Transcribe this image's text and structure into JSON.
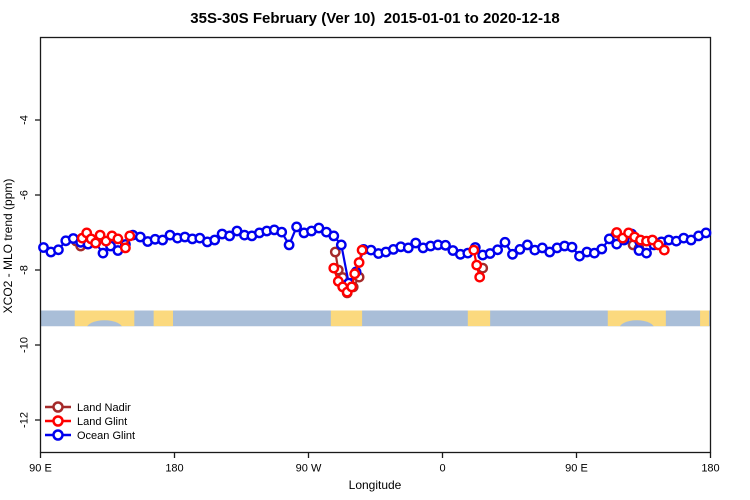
{
  "title": "35S-30S February (Ver 10)  2015-01-01 to 2020-12-18",
  "chart_data": {
    "type": "line",
    "title": "35S-30S February (Ver 10)  2015-01-01 to 2020-12-18",
    "xlabel": "Longitude",
    "ylabel": "XCO2 - MLO trend (ppm)",
    "x_axis_note": "longitude axis wraps: 90E eastward through 180, 90W, 0, 90E to 180 (450 deg total, plotted as 90..540)",
    "xlim": [
      90,
      540
    ],
    "ylim": [
      -12.2,
      -1.8
    ],
    "x_ticks": [
      {
        "value": 90,
        "label": "90 E"
      },
      {
        "value": 180,
        "label": "180"
      },
      {
        "value": 270,
        "label": "90 W"
      },
      {
        "value": 360,
        "label": "0"
      },
      {
        "value": 450,
        "label": "90 E"
      },
      {
        "value": 540,
        "label": "180"
      }
    ],
    "y_ticks": [
      {
        "value": -4,
        "label": "-4"
      },
      {
        "value": -6,
        "label": "-6"
      },
      {
        "value": -8,
        "label": "-8"
      },
      {
        "value": -10,
        "label": "-10"
      },
      {
        "value": -12,
        "label": "-12"
      }
    ],
    "land_ocean_band": {
      "comment": "horizontal strip showing land (tan) vs ocean (gray-blue) along the 35S-30S belt",
      "v_top": -9.08,
      "v_bottom": -9.5,
      "ocean_color": "#a9bed8",
      "land_color": "#fbd97e",
      "land_patches": [
        {
          "from": 113,
          "to": 153,
          "notch": true
        },
        {
          "from": 166,
          "to": 179,
          "notch": false
        },
        {
          "from": 285,
          "to": 306,
          "notch": false
        },
        {
          "from": 377,
          "to": 392,
          "notch": false
        },
        {
          "from": 471,
          "to": 510,
          "notch": true
        },
        {
          "from": 533,
          "to": 539,
          "notch": false
        }
      ]
    },
    "series": [
      {
        "name": "Land Nadir",
        "color": "#a52a2a",
        "segments": [
          [
            [
              114,
              -7.23
            ],
            [
              117,
              -7.36
            ],
            [
              121,
              -7.3
            ]
          ],
          [
            [
              288,
              -7.52
            ],
            [
              290,
              -8.0
            ],
            [
              293,
              -8.2
            ],
            [
              296,
              -8.61
            ],
            [
              300,
              -8.45
            ],
            [
              304,
              -8.19
            ]
          ],
          [
            [
              387,
              -7.95
            ]
          ],
          [
            [
              476,
              -7.09
            ],
            [
              488,
              -7.33
            ],
            [
              492,
              -7.42
            ]
          ]
        ]
      },
      {
        "name": "Ocean Glint",
        "color": "#0000ee",
        "segments": [
          [
            [
              92,
              -7.4
            ],
            [
              97,
              -7.52
            ],
            [
              102,
              -7.46
            ],
            [
              107,
              -7.22
            ],
            [
              112,
              -7.16
            ],
            [
              117,
              -7.26
            ],
            [
              122,
              -7.31
            ],
            [
              127,
              -7.28
            ],
            [
              132,
              -7.55
            ],
            [
              137,
              -7.36
            ],
            [
              142,
              -7.48
            ],
            [
              147,
              -7.32
            ],
            [
              152,
              -7.07
            ],
            [
              157,
              -7.12
            ],
            [
              162,
              -7.24
            ],
            [
              167,
              -7.18
            ],
            [
              172,
              -7.2
            ],
            [
              177,
              -7.07
            ],
            [
              182,
              -7.15
            ],
            [
              187,
              -7.12
            ],
            [
              192,
              -7.17
            ],
            [
              197,
              -7.15
            ],
            [
              202,
              -7.25
            ],
            [
              207,
              -7.2
            ],
            [
              212,
              -7.04
            ],
            [
              217,
              -7.09
            ],
            [
              222,
              -6.96
            ],
            [
              227,
              -7.07
            ],
            [
              232,
              -7.09
            ],
            [
              237,
              -7.01
            ],
            [
              242,
              -6.96
            ],
            [
              247,
              -6.93
            ],
            [
              252,
              -6.99
            ],
            [
              257,
              -7.33
            ],
            [
              262,
              -6.85
            ],
            [
              267,
              -7.01
            ],
            [
              272,
              -6.96
            ],
            [
              277,
              -6.88
            ],
            [
              282,
              -6.99
            ],
            [
              287,
              -7.09
            ],
            [
              292,
              -7.33
            ],
            [
              297,
              -8.35
            ],
            [
              302,
              -8.05
            ],
            [
              307,
              -7.45
            ],
            [
              312,
              -7.47
            ],
            [
              317,
              -7.56
            ],
            [
              322,
              -7.52
            ],
            [
              327,
              -7.45
            ],
            [
              332,
              -7.38
            ],
            [
              337,
              -7.41
            ],
            [
              342,
              -7.28
            ],
            [
              347,
              -7.41
            ],
            [
              352,
              -7.36
            ],
            [
              357,
              -7.33
            ],
            [
              362,
              -7.34
            ],
            [
              367,
              -7.48
            ],
            [
              372,
              -7.58
            ],
            [
              377,
              -7.55
            ],
            [
              382,
              -7.4
            ],
            [
              387,
              -7.6
            ],
            [
              392,
              -7.56
            ],
            [
              397,
              -7.46
            ],
            [
              402,
              -7.26
            ],
            [
              407,
              -7.58
            ],
            [
              412,
              -7.45
            ],
            [
              417,
              -7.33
            ],
            [
              422,
              -7.47
            ],
            [
              427,
              -7.41
            ],
            [
              432,
              -7.52
            ],
            [
              437,
              -7.41
            ],
            [
              442,
              -7.36
            ],
            [
              447,
              -7.39
            ],
            [
              452,
              -7.63
            ],
            [
              457,
              -7.52
            ],
            [
              462,
              -7.55
            ],
            [
              467,
              -7.44
            ],
            [
              472,
              -7.17
            ],
            [
              477,
              -7.31
            ],
            [
              482,
              -7.2
            ],
            [
              487,
              -7.04
            ],
            [
              492,
              -7.48
            ],
            [
              497,
              -7.55
            ],
            [
              502,
              -7.33
            ],
            [
              507,
              -7.25
            ],
            [
              512,
              -7.2
            ],
            [
              517,
              -7.23
            ],
            [
              522,
              -7.15
            ],
            [
              527,
              -7.2
            ],
            [
              532,
              -7.09
            ],
            [
              537,
              -7.01
            ]
          ]
        ]
      },
      {
        "name": "Land Glint",
        "color": "#ff0000",
        "segments": [
          [
            [
              118,
              -7.15
            ],
            [
              121,
              -7.01
            ],
            [
              124,
              -7.17
            ],
            [
              127,
              -7.28
            ],
            [
              130,
              -7.07
            ],
            [
              134,
              -7.23
            ],
            [
              138,
              -7.09
            ],
            [
              142,
              -7.17
            ],
            [
              147,
              -7.41
            ],
            [
              150,
              -7.09
            ]
          ],
          [
            [
              287,
              -7.95
            ],
            [
              290,
              -8.3
            ],
            [
              293,
              -8.45
            ],
            [
              296,
              -8.59
            ],
            [
              299,
              -8.45
            ],
            [
              301,
              -8.1
            ],
            [
              304,
              -7.8
            ],
            [
              306,
              -7.47
            ]
          ],
          [
            [
              381,
              -7.47
            ],
            [
              383,
              -7.87
            ],
            [
              385,
              -8.19
            ]
          ],
          [
            [
              477,
              -7.0
            ],
            [
              481,
              -7.15
            ],
            [
              485,
              -7.01
            ],
            [
              489,
              -7.12
            ],
            [
              493,
              -7.2
            ],
            [
              497,
              -7.23
            ],
            [
              501,
              -7.2
            ],
            [
              505,
              -7.33
            ],
            [
              509,
              -7.47
            ]
          ]
        ]
      }
    ],
    "legend": {
      "position": "bottom-left",
      "items": [
        {
          "label": "Land Nadir",
          "color": "#a52a2a"
        },
        {
          "label": "Land Glint",
          "color": "#ff0000"
        },
        {
          "label": "Ocean Glint",
          "color": "#0000ee"
        }
      ]
    },
    "marker": {
      "shape": "open-circle",
      "radius": 4.2,
      "stroke_width": 2.4,
      "fill": "#ffffff"
    },
    "line_width": 2.2
  },
  "layout_colors": {
    "box_stroke": "#1a1a1a",
    "background": "#ffffff"
  }
}
